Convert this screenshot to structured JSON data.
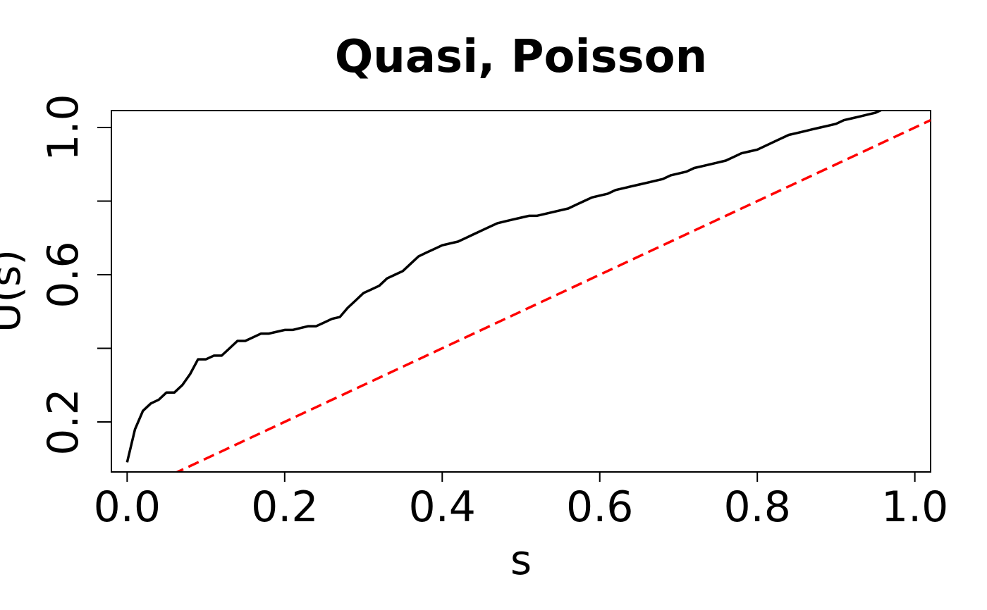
{
  "chart_data": {
    "type": "line",
    "title": "Quasi, Poisson",
    "xlabel": "s",
    "ylabel": "U(s)",
    "xlim": [
      -0.02,
      1.02
    ],
    "ylim": [
      0.064,
      1.046
    ],
    "x_ticks": [
      0.0,
      0.2,
      0.4,
      0.6,
      0.8,
      1.0
    ],
    "x_tick_labels": [
      "0.0",
      "0.2",
      "0.4",
      "0.6",
      "0.8",
      "1.0"
    ],
    "y_ticks": [
      0.2,
      0.4,
      0.6,
      0.8,
      1.0
    ],
    "y_tick_labels": [
      "0.2",
      "",
      "0.6",
      "",
      "1.0"
    ],
    "grid": false,
    "series": [
      {
        "color": "#000000",
        "style": "solid",
        "x": [
          0.0,
          0.01,
          0.02,
          0.03,
          0.04,
          0.05,
          0.06,
          0.07,
          0.08,
          0.09,
          0.1,
          0.11,
          0.12,
          0.13,
          0.14,
          0.15,
          0.16,
          0.17,
          0.18,
          0.19,
          0.2,
          0.21,
          0.22,
          0.23,
          0.24,
          0.25,
          0.26,
          0.27,
          0.28,
          0.29,
          0.3,
          0.31,
          0.32,
          0.33,
          0.34,
          0.35,
          0.36,
          0.37,
          0.38,
          0.39,
          0.4,
          0.41,
          0.42,
          0.43,
          0.44,
          0.45,
          0.46,
          0.47,
          0.48,
          0.49,
          0.5,
          0.51,
          0.52,
          0.53,
          0.54,
          0.55,
          0.56,
          0.57,
          0.58,
          0.59,
          0.6,
          0.61,
          0.62,
          0.63,
          0.64,
          0.65,
          0.66,
          0.67,
          0.68,
          0.69,
          0.7,
          0.71,
          0.72,
          0.73,
          0.74,
          0.75,
          0.76,
          0.77,
          0.78,
          0.79,
          0.8,
          0.81,
          0.82,
          0.83,
          0.84,
          0.85,
          0.86,
          0.87,
          0.88,
          0.89,
          0.9,
          0.91,
          0.92,
          0.93,
          0.94,
          0.95,
          0.96,
          0.97,
          0.98,
          0.99,
          1.0
        ],
        "y": [
          0.09,
          0.18,
          0.23,
          0.25,
          0.26,
          0.28,
          0.28,
          0.3,
          0.33,
          0.37,
          0.37,
          0.38,
          0.38,
          0.4,
          0.42,
          0.42,
          0.43,
          0.44,
          0.44,
          0.445,
          0.45,
          0.45,
          0.455,
          0.46,
          0.46,
          0.47,
          0.48,
          0.485,
          0.51,
          0.53,
          0.55,
          0.56,
          0.57,
          0.59,
          0.6,
          0.61,
          0.63,
          0.65,
          0.66,
          0.67,
          0.68,
          0.685,
          0.69,
          0.7,
          0.71,
          0.72,
          0.73,
          0.74,
          0.745,
          0.75,
          0.755,
          0.76,
          0.76,
          0.765,
          0.77,
          0.775,
          0.78,
          0.79,
          0.8,
          0.81,
          0.815,
          0.82,
          0.83,
          0.835,
          0.84,
          0.845,
          0.85,
          0.855,
          0.86,
          0.87,
          0.875,
          0.88,
          0.89,
          0.895,
          0.9,
          0.905,
          0.91,
          0.92,
          0.93,
          0.935,
          0.94,
          0.95,
          0.96,
          0.97,
          0.98,
          0.985,
          0.99,
          0.995,
          1.0,
          1.005,
          1.01,
          1.02,
          1.025,
          1.03,
          1.035,
          1.04,
          1.05,
          1.06,
          1.065,
          1.07,
          1.08
        ]
      },
      {
        "color": "#ff0000",
        "style": "dashed",
        "x": [
          0.0,
          1.02
        ],
        "y": [
          0.0,
          1.02
        ]
      }
    ]
  }
}
